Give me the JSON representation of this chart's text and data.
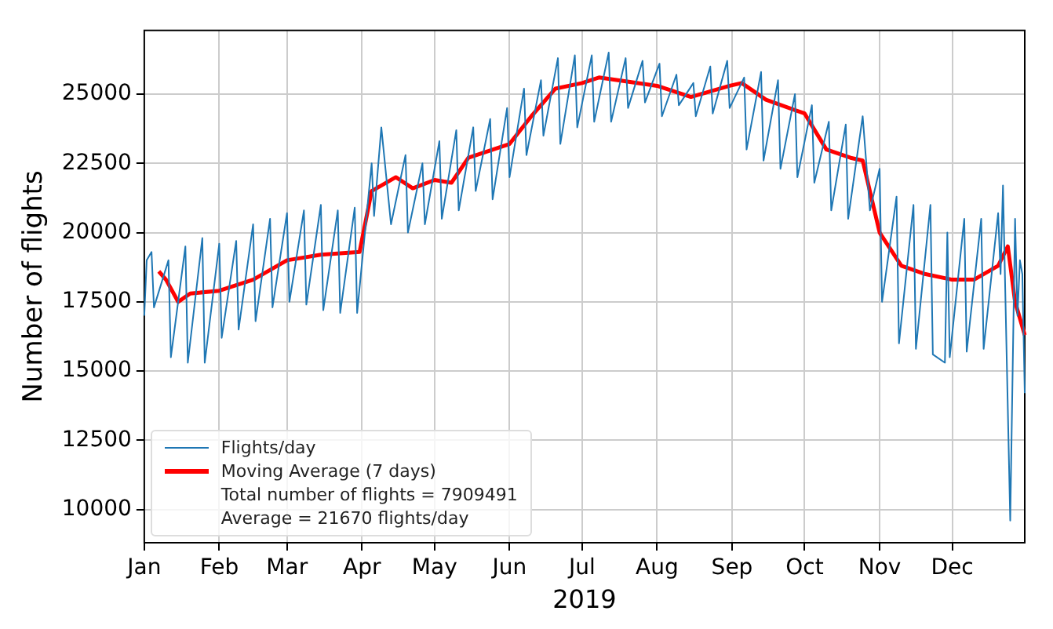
{
  "chart_data": {
    "type": "line",
    "xlabel": "2019",
    "ylabel": "Number of flights",
    "xlim": [
      "2019-01-01",
      "2019-12-31"
    ],
    "xticks": [
      {
        "value": "2019-01-01",
        "label": "Jan"
      },
      {
        "value": "2019-02-01",
        "label": "Feb"
      },
      {
        "value": "2019-03-01",
        "label": "Mar"
      },
      {
        "value": "2019-04-01",
        "label": "Apr"
      },
      {
        "value": "2019-05-01",
        "label": "May"
      },
      {
        "value": "2019-06-01",
        "label": "Jun"
      },
      {
        "value": "2019-07-01",
        "label": "Jul"
      },
      {
        "value": "2019-08-01",
        "label": "Aug"
      },
      {
        "value": "2019-09-01",
        "label": "Sep"
      },
      {
        "value": "2019-10-01",
        "label": "Oct"
      },
      {
        "value": "2019-11-01",
        "label": "Nov"
      },
      {
        "value": "2019-12-01",
        "label": "Dec"
      }
    ],
    "ylim": [
      8800,
      27300
    ],
    "yticks": [
      10000,
      12500,
      15000,
      17500,
      20000,
      22500,
      25000
    ],
    "grid": true,
    "legend": "bottom left",
    "annotations": [
      "Total number of flights = 7909491",
      "Average = 21670 flights/day"
    ],
    "series": [
      {
        "name": "Flights/day",
        "color": "#1f77b4",
        "x": [
          "2019-01-01",
          "2019-01-02",
          "2019-01-04",
          "2019-01-05",
          "2019-01-11",
          "2019-01-12",
          "2019-01-18",
          "2019-01-19",
          "2019-01-25",
          "2019-01-26",
          "2019-02-01",
          "2019-02-02",
          "2019-02-08",
          "2019-02-09",
          "2019-02-15",
          "2019-02-16",
          "2019-02-22",
          "2019-02-23",
          "2019-03-01",
          "2019-03-02",
          "2019-03-08",
          "2019-03-09",
          "2019-03-15",
          "2019-03-16",
          "2019-03-22",
          "2019-03-23",
          "2019-03-29",
          "2019-03-30",
          "2019-04-05",
          "2019-04-06",
          "2019-04-09",
          "2019-04-13",
          "2019-04-19",
          "2019-04-20",
          "2019-04-26",
          "2019-04-27",
          "2019-05-03",
          "2019-05-04",
          "2019-05-10",
          "2019-05-11",
          "2019-05-17",
          "2019-05-18",
          "2019-05-24",
          "2019-05-25",
          "2019-05-31",
          "2019-06-01",
          "2019-06-07",
          "2019-06-08",
          "2019-06-14",
          "2019-06-15",
          "2019-06-21",
          "2019-06-22",
          "2019-06-28",
          "2019-06-29",
          "2019-07-05",
          "2019-07-06",
          "2019-07-12",
          "2019-07-13",
          "2019-07-19",
          "2019-07-20",
          "2019-07-26",
          "2019-07-27",
          "2019-08-02",
          "2019-08-03",
          "2019-08-09",
          "2019-08-10",
          "2019-08-16",
          "2019-08-17",
          "2019-08-23",
          "2019-08-24",
          "2019-08-30",
          "2019-08-31",
          "2019-09-06",
          "2019-09-07",
          "2019-09-13",
          "2019-09-14",
          "2019-09-20",
          "2019-09-21",
          "2019-09-27",
          "2019-09-28",
          "2019-10-04",
          "2019-10-05",
          "2019-10-11",
          "2019-10-12",
          "2019-10-18",
          "2019-10-19",
          "2019-10-25",
          "2019-10-28",
          "2019-11-01",
          "2019-11-02",
          "2019-11-08",
          "2019-11-09",
          "2019-11-15",
          "2019-11-16",
          "2019-11-22",
          "2019-11-23",
          "2019-11-28",
          "2019-11-29",
          "2019-11-30",
          "2019-12-06",
          "2019-12-07",
          "2019-12-13",
          "2019-12-14",
          "2019-12-20",
          "2019-12-21",
          "2019-12-22",
          "2019-12-25",
          "2019-12-27",
          "2019-12-28",
          "2019-12-29",
          "2019-12-30",
          "2019-12-31"
        ],
        "values": [
          17000,
          19000,
          19300,
          17300,
          19000,
          15500,
          19500,
          15300,
          19800,
          15300,
          19600,
          16200,
          19700,
          16500,
          20300,
          16800,
          20500,
          17300,
          20700,
          17500,
          20800,
          17400,
          21000,
          17200,
          20800,
          17100,
          20900,
          17100,
          22500,
          20600,
          23800,
          20300,
          22800,
          20000,
          22500,
          20300,
          23300,
          20500,
          23700,
          20800,
          23800,
          21500,
          24100,
          21200,
          24500,
          22000,
          25200,
          22800,
          25500,
          23500,
          26300,
          23200,
          26400,
          23800,
          26400,
          24000,
          26500,
          24000,
          26300,
          24500,
          26200,
          24700,
          26100,
          24200,
          25700,
          24600,
          25400,
          24200,
          26000,
          24300,
          26200,
          24500,
          25600,
          23000,
          25800,
          22600,
          25500,
          22300,
          25000,
          22000,
          24600,
          21800,
          24000,
          20800,
          23900,
          20500,
          24200,
          20800,
          22300,
          17500,
          21300,
          16000,
          21000,
          15800,
          21000,
          15600,
          15300,
          20000,
          15500,
          20500,
          15700,
          20500,
          15800,
          20700,
          18500,
          21700,
          9600,
          20500,
          17000,
          19000,
          18500,
          14200
        ]
      },
      {
        "name": "Moving Average (7 days)",
        "color": "#ff0000",
        "x": [
          "2019-01-07",
          "2019-01-10",
          "2019-01-15",
          "2019-01-20",
          "2019-02-01",
          "2019-02-15",
          "2019-03-01",
          "2019-03-15",
          "2019-03-31",
          "2019-04-05",
          "2019-04-15",
          "2019-04-22",
          "2019-05-01",
          "2019-05-08",
          "2019-05-15",
          "2019-06-01",
          "2019-06-10",
          "2019-06-20",
          "2019-07-01",
          "2019-07-08",
          "2019-08-01",
          "2019-08-15",
          "2019-08-31",
          "2019-09-05",
          "2019-09-15",
          "2019-10-01",
          "2019-10-10",
          "2019-10-20",
          "2019-10-25",
          "2019-11-01",
          "2019-11-10",
          "2019-11-20",
          "2019-12-01",
          "2019-12-10",
          "2019-12-20",
          "2019-12-24",
          "2019-12-27",
          "2019-12-31"
        ],
        "values": [
          18600,
          18300,
          17500,
          17800,
          17900,
          18300,
          19000,
          19200,
          19300,
          21500,
          22000,
          21600,
          21900,
          21800,
          22700,
          23200,
          24200,
          25200,
          25400,
          25600,
          25300,
          24900,
          25300,
          25400,
          24800,
          24300,
          23000,
          22700,
          22600,
          20000,
          18800,
          18500,
          18300,
          18300,
          18800,
          19500,
          17500,
          16300
        ]
      }
    ]
  }
}
